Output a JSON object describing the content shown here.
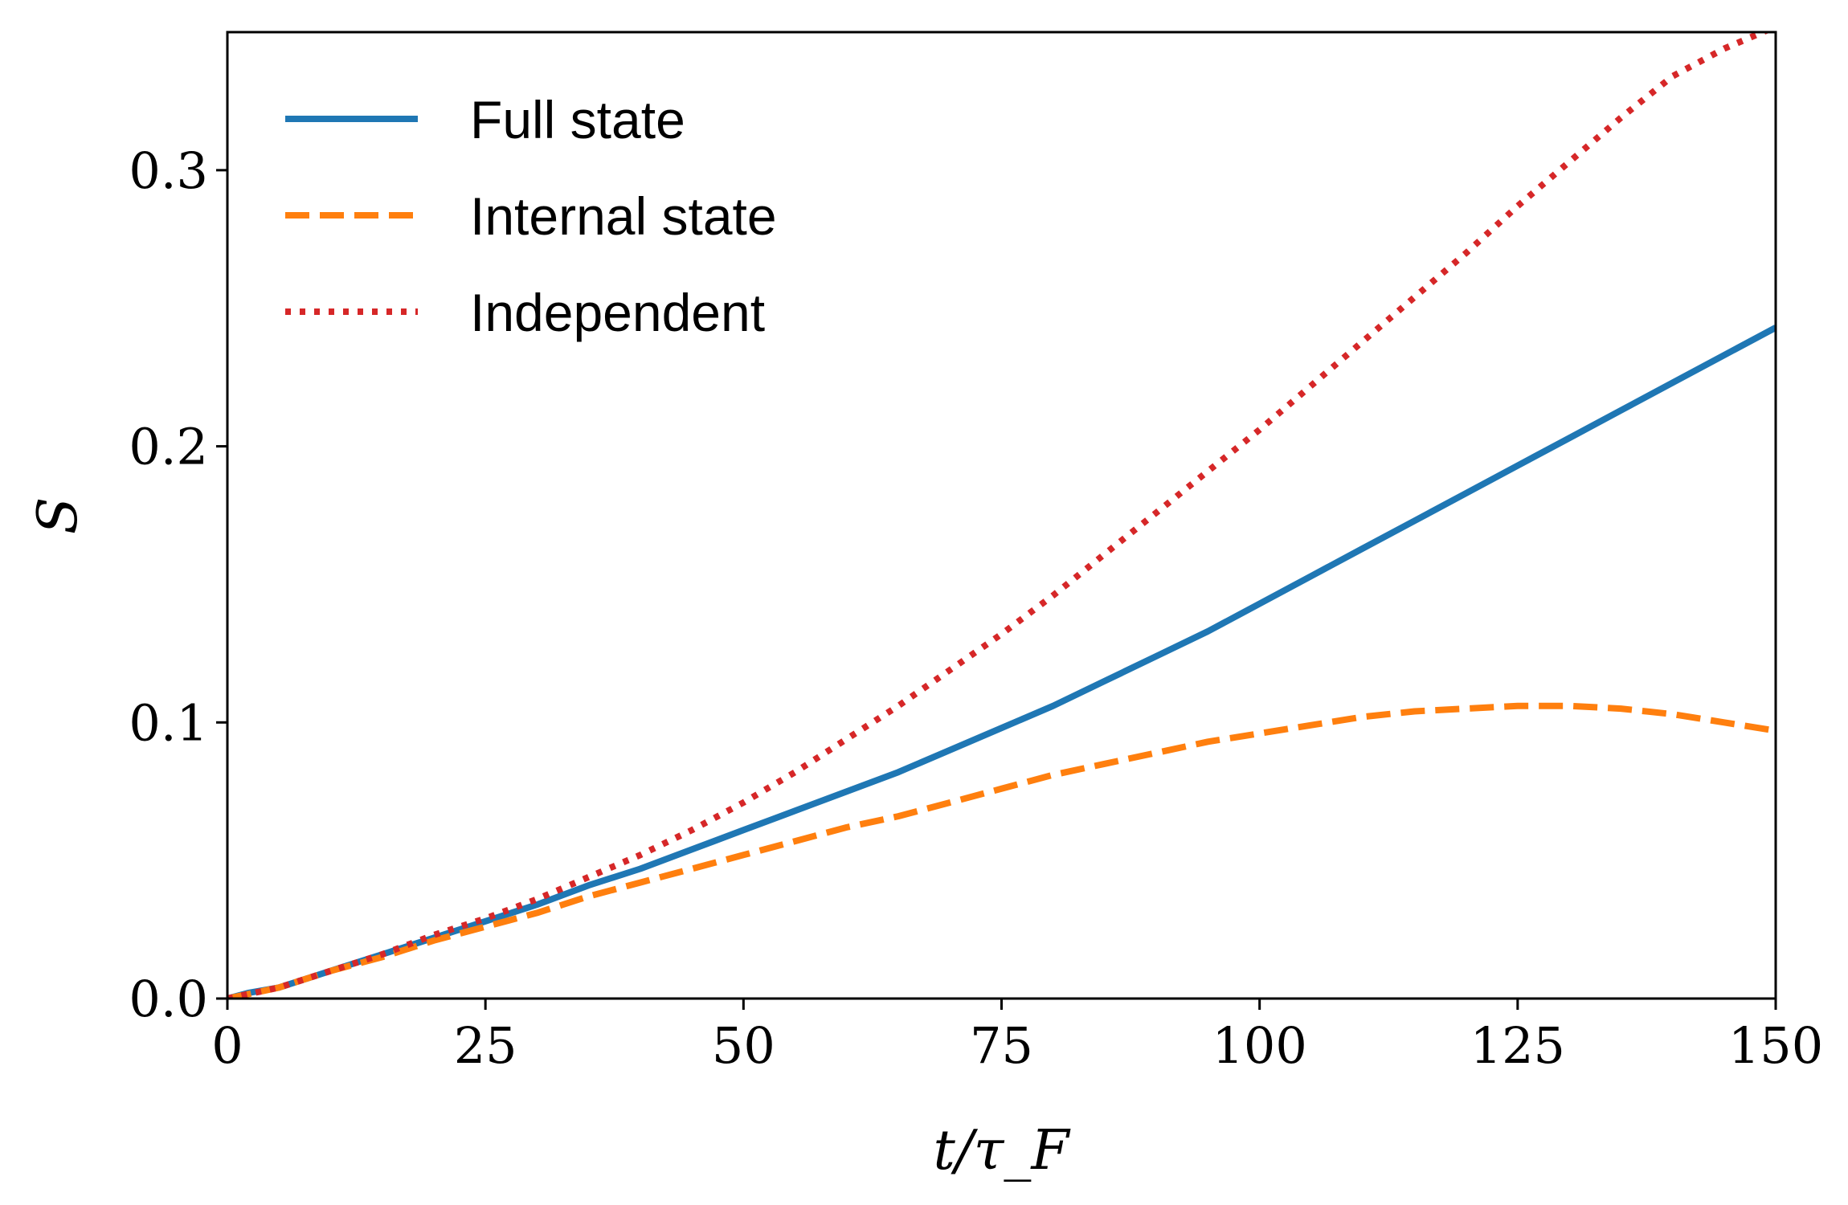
{
  "chart_data": {
    "type": "line",
    "title": "",
    "xlabel": "t/τ_F",
    "ylabel": "S",
    "xlim": [
      0,
      150
    ],
    "ylim": [
      0,
      0.35
    ],
    "xticks": [
      0,
      25,
      50,
      75,
      100,
      125,
      150
    ],
    "xtick_labels": [
      "0",
      "25",
      "50",
      "75",
      "100",
      "125",
      "150"
    ],
    "yticks": [
      0.0,
      0.1,
      0.2,
      0.3
    ],
    "ytick_labels": [
      "0.0",
      "0.1",
      "0.2",
      "0.3"
    ],
    "grid": false,
    "legend_position": "top-left",
    "series": [
      {
        "name": "Full state",
        "color": "#1f77b4",
        "style": "solid",
        "x": [
          0,
          2,
          5,
          10,
          15,
          20,
          25,
          30,
          35,
          40,
          45,
          50,
          55,
          60,
          65,
          70,
          75,
          80,
          85,
          90,
          95,
          100,
          105,
          110,
          115,
          120,
          125,
          130,
          135,
          140,
          145,
          150
        ],
        "y": [
          0.0,
          0.002,
          0.004,
          0.01,
          0.016,
          0.022,
          0.028,
          0.034,
          0.041,
          0.047,
          0.054,
          0.061,
          0.068,
          0.075,
          0.082,
          0.09,
          0.098,
          0.106,
          0.115,
          0.124,
          0.133,
          0.143,
          0.153,
          0.163,
          0.173,
          0.183,
          0.193,
          0.203,
          0.213,
          0.223,
          0.233,
          0.243
        ]
      },
      {
        "name": "Internal state",
        "color": "#ff7f0e",
        "style": "dashed",
        "x": [
          0,
          5,
          10,
          15,
          20,
          25,
          30,
          35,
          40,
          45,
          50,
          55,
          60,
          65,
          70,
          75,
          80,
          85,
          90,
          95,
          100,
          105,
          110,
          115,
          120,
          125,
          130,
          135,
          140,
          145,
          150
        ],
        "y": [
          0.0,
          0.004,
          0.01,
          0.015,
          0.021,
          0.026,
          0.031,
          0.037,
          0.042,
          0.047,
          0.052,
          0.057,
          0.062,
          0.066,
          0.071,
          0.076,
          0.081,
          0.085,
          0.089,
          0.093,
          0.096,
          0.099,
          0.102,
          0.104,
          0.105,
          0.106,
          0.106,
          0.105,
          0.103,
          0.1,
          0.097
        ]
      },
      {
        "name": "Independent",
        "color": "#d62728",
        "style": "dotted",
        "x": [
          0,
          5,
          10,
          15,
          20,
          25,
          30,
          35,
          40,
          45,
          50,
          55,
          60,
          65,
          70,
          75,
          80,
          85,
          90,
          95,
          100,
          105,
          110,
          115,
          120,
          125,
          130,
          135,
          140,
          145,
          150
        ],
        "y": [
          0.0,
          0.004,
          0.01,
          0.016,
          0.023,
          0.029,
          0.036,
          0.044,
          0.052,
          0.061,
          0.071,
          0.082,
          0.094,
          0.106,
          0.119,
          0.132,
          0.146,
          0.161,
          0.176,
          0.191,
          0.206,
          0.222,
          0.238,
          0.254,
          0.27,
          0.287,
          0.303,
          0.319,
          0.334,
          0.344,
          0.352
        ]
      }
    ]
  }
}
